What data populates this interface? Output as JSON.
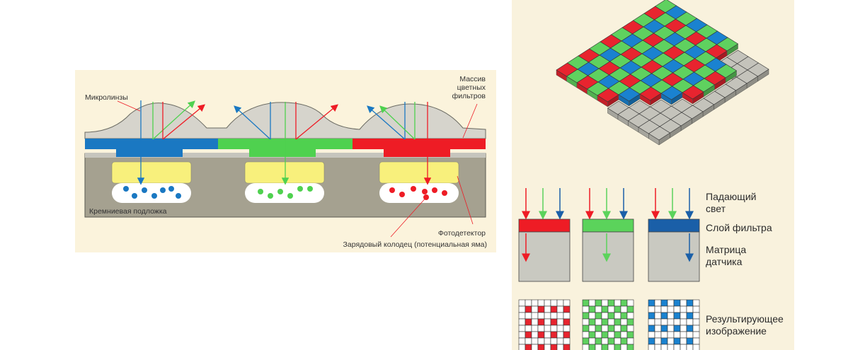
{
  "left_diagram": {
    "labels": {
      "microlenses": "Микролинзы",
      "filter_array_line1": "Массив",
      "filter_array_line2": "цветных",
      "filter_array_line3": "фильтров",
      "substrate": "Кремниевая подложка",
      "photodetector": "Фотодетектор",
      "charge_well": "Зарядовый колодец (потенциальная яма)"
    },
    "colors": {
      "blue": "#1a78c2",
      "green": "#4fd14f",
      "red": "#ee1c25",
      "yellow": "#f8f07c",
      "substrate": "#a5a190",
      "lens": "#d6d4cc"
    }
  },
  "right_diagram": {
    "labels": {
      "incident_light_line1": "Падающий",
      "incident_light_line2": "свет",
      "filter_layer": "Слой фильтра",
      "sensor_matrix_line1": "Матрица",
      "sensor_matrix_line2": "датчика",
      "resulting_image_line1": "Результирующее",
      "resulting_image_line2": "изображение"
    },
    "columns": [
      "red",
      "green",
      "blue"
    ],
    "colors": {
      "red": "#ee1c25",
      "green": "#5bd35b",
      "blue": "#1a5fa8",
      "sensor": "#c9c9c1",
      "bayer_green": "#5fd15f",
      "bayer_red": "#e8242f",
      "bayer_blue": "#1a82d0"
    }
  }
}
